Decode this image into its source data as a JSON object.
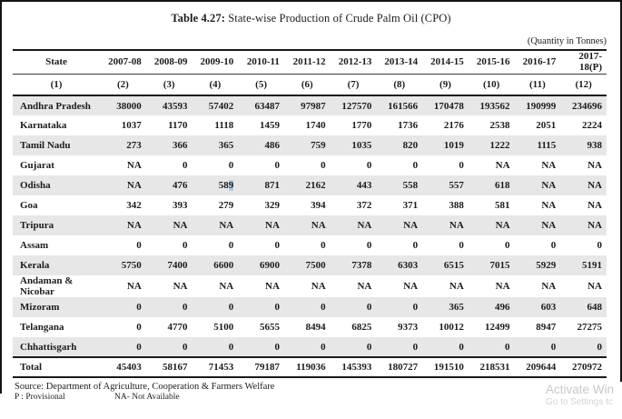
{
  "title": {
    "label": "Table 4.27:",
    "text": " State-wise Production of Crude Palm Oil (CPO)"
  },
  "unit_note": "(Quantity in Tonnes)",
  "table": {
    "state_header": "State",
    "col_headers": [
      "2007-08",
      "2008-09",
      "2009-10",
      "2010-11",
      "2011-12",
      "2012-13",
      "2013-14",
      "2014-15",
      "2015-16",
      "2016-17",
      "2017-18(P)"
    ],
    "col_numbers": [
      "(1)",
      "(2)",
      "(3)",
      "(4)",
      "(5)",
      "(6)",
      "(7)",
      "(8)",
      "(9)",
      "(10)",
      "(11)",
      "(12)"
    ],
    "rows": [
      {
        "state": "Andhra Pradesh",
        "values": [
          "38000",
          "43593",
          "57402",
          "63487",
          "97987",
          "127570",
          "161566",
          "170478",
          "193562",
          "190999",
          "234696"
        ]
      },
      {
        "state": "Karnataka",
        "values": [
          "1037",
          "1170",
          "1118",
          "1459",
          "1740",
          "1770",
          "1736",
          "2176",
          "2538",
          "2051",
          "2224"
        ]
      },
      {
        "state": "Tamil Nadu",
        "values": [
          "273",
          "366",
          "365",
          "486",
          "759",
          "1035",
          "820",
          "1019",
          "1222",
          "1115",
          "938"
        ]
      },
      {
        "state": "Gujarat",
        "values": [
          "NA",
          "0",
          "0",
          "0",
          "0",
          "0",
          "0",
          "0",
          "NA",
          "NA",
          "NA"
        ]
      },
      {
        "state": "Odisha",
        "values": [
          "NA",
          "476",
          "589",
          "871",
          "2162",
          "443",
          "558",
          "557",
          "618",
          "NA",
          "NA"
        ]
      },
      {
        "state": "Goa",
        "values": [
          "342",
          "393",
          "279",
          "329",
          "394",
          "372",
          "371",
          "388",
          "581",
          "NA",
          "NA"
        ]
      },
      {
        "state": "Tripura",
        "values": [
          "NA",
          "NA",
          "NA",
          "NA",
          "NA",
          "NA",
          "NA",
          "NA",
          "NA",
          "NA",
          "NA"
        ]
      },
      {
        "state": "Assam",
        "values": [
          "0",
          "0",
          "0",
          "0",
          "0",
          "0",
          "0",
          "0",
          "0",
          "0",
          "0"
        ]
      },
      {
        "state": "Kerala",
        "values": [
          "5750",
          "7400",
          "6600",
          "6900",
          "7500",
          "7378",
          "6303",
          "6515",
          "7015",
          "5929",
          "5191"
        ]
      },
      {
        "state": "Andaman & Nicobar",
        "values": [
          "NA",
          "NA",
          "NA",
          "NA",
          "NA",
          "NA",
          "NA",
          "NA",
          "NA",
          "NA",
          "NA"
        ]
      },
      {
        "state": "Mizoram",
        "values": [
          "0",
          "0",
          "0",
          "0",
          "0",
          "0",
          "0",
          "365",
          "496",
          "603",
          "648"
        ]
      },
      {
        "state": "Telangana",
        "values": [
          "0",
          "4770",
          "5100",
          "5655",
          "8494",
          "6825",
          "9373",
          "10012",
          "12499",
          "8947",
          "27275"
        ]
      },
      {
        "state": "Chhattisgarh",
        "values": [
          "0",
          "0",
          "0",
          "0",
          "0",
          "0",
          "0",
          "0",
          "0",
          "0",
          "0"
        ]
      }
    ],
    "total_row": {
      "state": "Total",
      "values": [
        "45403",
        "58167",
        "71453",
        "79187",
        "119036",
        "145393",
        "180727",
        "191510",
        "218531",
        "209644",
        "270972"
      ]
    }
  },
  "cursor": {
    "row_index": 4,
    "col_index": 2
  },
  "footer": {
    "source": "Source:  Department of Agriculture, Cooperation & Farmers Welfare",
    "note_p": "P : Provisional",
    "note_na": "NA- Not Available"
  },
  "watermark": {
    "line1": "Activate Win",
    "line2": "Go to Settings tc"
  },
  "colors": {
    "stripe": "#e7e7e7",
    "text": "#1c1c1c",
    "rule": "#1a1a1a",
    "cursor_highlight": "#aecbe6",
    "watermark": "#c9c9c9"
  }
}
